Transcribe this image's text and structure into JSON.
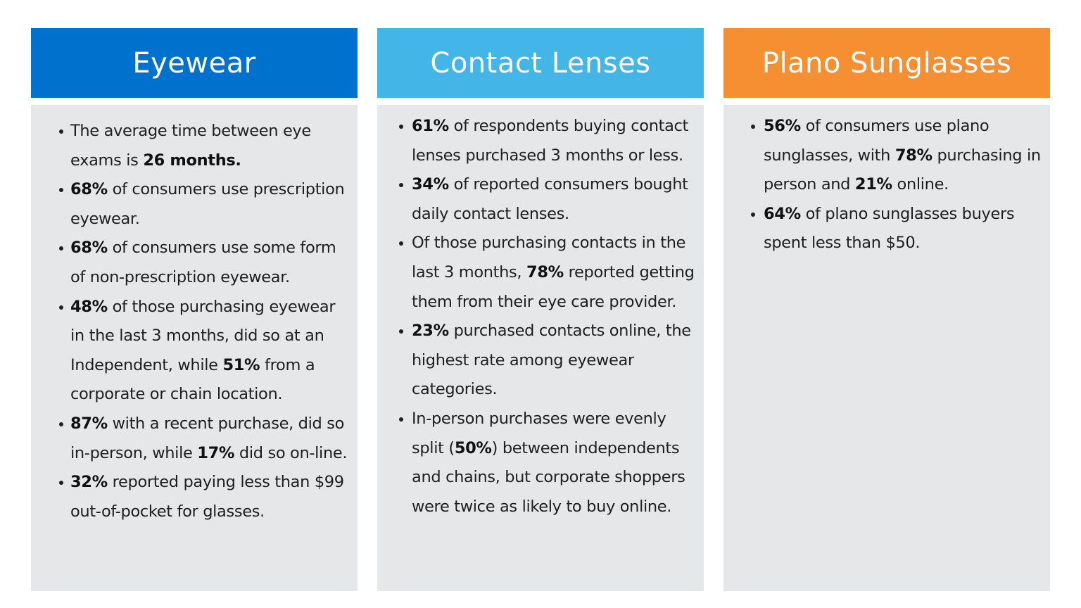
{
  "columns": [
    {
      "title": "Eyewear",
      "color": "#0072ce",
      "bullets": [
        [
          {
            "t": "The average time between eye exams is "
          },
          {
            "t": "26 months.",
            "b": true
          }
        ],
        [
          {
            "t": "68%",
            "b": true
          },
          {
            "t": " of consumers use prescription eyewear."
          }
        ],
        [
          {
            "t": "68%",
            "b": true
          },
          {
            "t": " of consumers use some form of non-prescription eyewear."
          }
        ],
        [
          {
            "t": "48%",
            "b": true
          },
          {
            "t": " of those purchasing eyewear in the last 3 months, did so at an Independent, while "
          },
          {
            "t": "51%",
            "b": true
          },
          {
            "t": " from a corporate or chain location."
          }
        ],
        [
          {
            "t": "87%",
            "b": true
          },
          {
            "t": " with a recent purchase, did so in-person, while "
          },
          {
            "t": "17%",
            "b": true
          },
          {
            "t": " did so on-line."
          }
        ],
        [
          {
            "t": "32%",
            "b": true
          },
          {
            "t": " reported paying less than $99 out-of-pocket for glasses."
          }
        ]
      ]
    },
    {
      "title": "Contact Lenses",
      "color": "#43b5e6",
      "bullets": [
        [
          {
            "t": "61%",
            "b": true
          },
          {
            "t": " of respondents buying contact lenses purchased 3 months or less."
          }
        ],
        [
          {
            "t": "34%",
            "b": true
          },
          {
            "t": " of reported consumers bought daily contact lenses."
          }
        ],
        [
          {
            "t": "Of those purchasing contacts in the last 3 months, "
          },
          {
            "t": "78%",
            "b": true
          },
          {
            "t": " reported getting them from their eye care provider."
          }
        ],
        [
          {
            "t": "23%",
            "b": true
          },
          {
            "t": " purchased contacts online, the highest rate among eyewear categories."
          }
        ],
        [
          {
            "t": "In-person purchases were evenly split ("
          },
          {
            "t": "50%",
            "b": true
          },
          {
            "t": ") between independents and chains, but corporate shoppers were twice as likely to buy online."
          }
        ]
      ]
    },
    {
      "title": "Plano Sunglasses",
      "color": "#f68e32",
      "bullets": [
        [
          {
            "t": "56%",
            "b": true
          },
          {
            "t": " of consumers use plano sunglasses, with "
          },
          {
            "t": "78%",
            "b": true
          },
          {
            "t": " purchasing in person and "
          },
          {
            "t": "21%",
            "b": true
          },
          {
            "t": " online."
          }
        ],
        [
          {
            "t": " "
          },
          {
            "t": "64%",
            "b": true
          },
          {
            "t": " of plano sunglasses buyers spent less than $50."
          }
        ]
      ]
    }
  ],
  "panel_background": "#e6e7e9",
  "icons": {
    "bullet": "bullet-dot"
  }
}
